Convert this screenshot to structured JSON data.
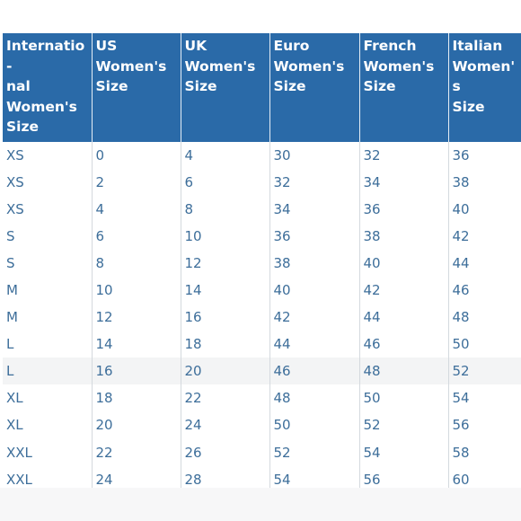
{
  "table": {
    "headers": [
      [
        "Internatio-",
        "nal",
        "Women's",
        "Size"
      ],
      [
        "US",
        "Women's",
        "Size"
      ],
      [
        "UK",
        "Women's",
        "Size"
      ],
      [
        "Euro",
        "Women's",
        "Size"
      ],
      [
        "French",
        "Women's",
        "Size"
      ],
      [
        "Italian",
        "Women's",
        "Size"
      ]
    ],
    "rows": [
      [
        "XS",
        "0",
        "4",
        "30",
        "32",
        "36"
      ],
      [
        "XS",
        "2",
        "6",
        "32",
        "34",
        "38"
      ],
      [
        "XS",
        "4",
        "8",
        "34",
        "36",
        "40"
      ],
      [
        "S",
        "6",
        "10",
        "36",
        "38",
        "42"
      ],
      [
        "S",
        "8",
        "12",
        "38",
        "40",
        "44"
      ],
      [
        "M",
        "10",
        "14",
        "40",
        "42",
        "46"
      ],
      [
        "M",
        "12",
        "16",
        "42",
        "44",
        "48"
      ],
      [
        "L",
        "14",
        "18",
        "44",
        "46",
        "50"
      ],
      [
        "L",
        "16",
        "20",
        "46",
        "48",
        "52"
      ],
      [
        "XL",
        "18",
        "22",
        "48",
        "50",
        "54"
      ],
      [
        "XL",
        "20",
        "24",
        "50",
        "52",
        "56"
      ],
      [
        "XXL",
        "22",
        "26",
        "52",
        "54",
        "58"
      ],
      [
        "XXL",
        "24",
        "28",
        "54",
        "56",
        "60"
      ]
    ],
    "highlighted_row": 8
  },
  "colors": {
    "header_bg": "#2a6aa8",
    "header_text": "#ffffff",
    "cell_text": "#3d6e9a",
    "highlight_row_bg": "#f3f4f5"
  }
}
